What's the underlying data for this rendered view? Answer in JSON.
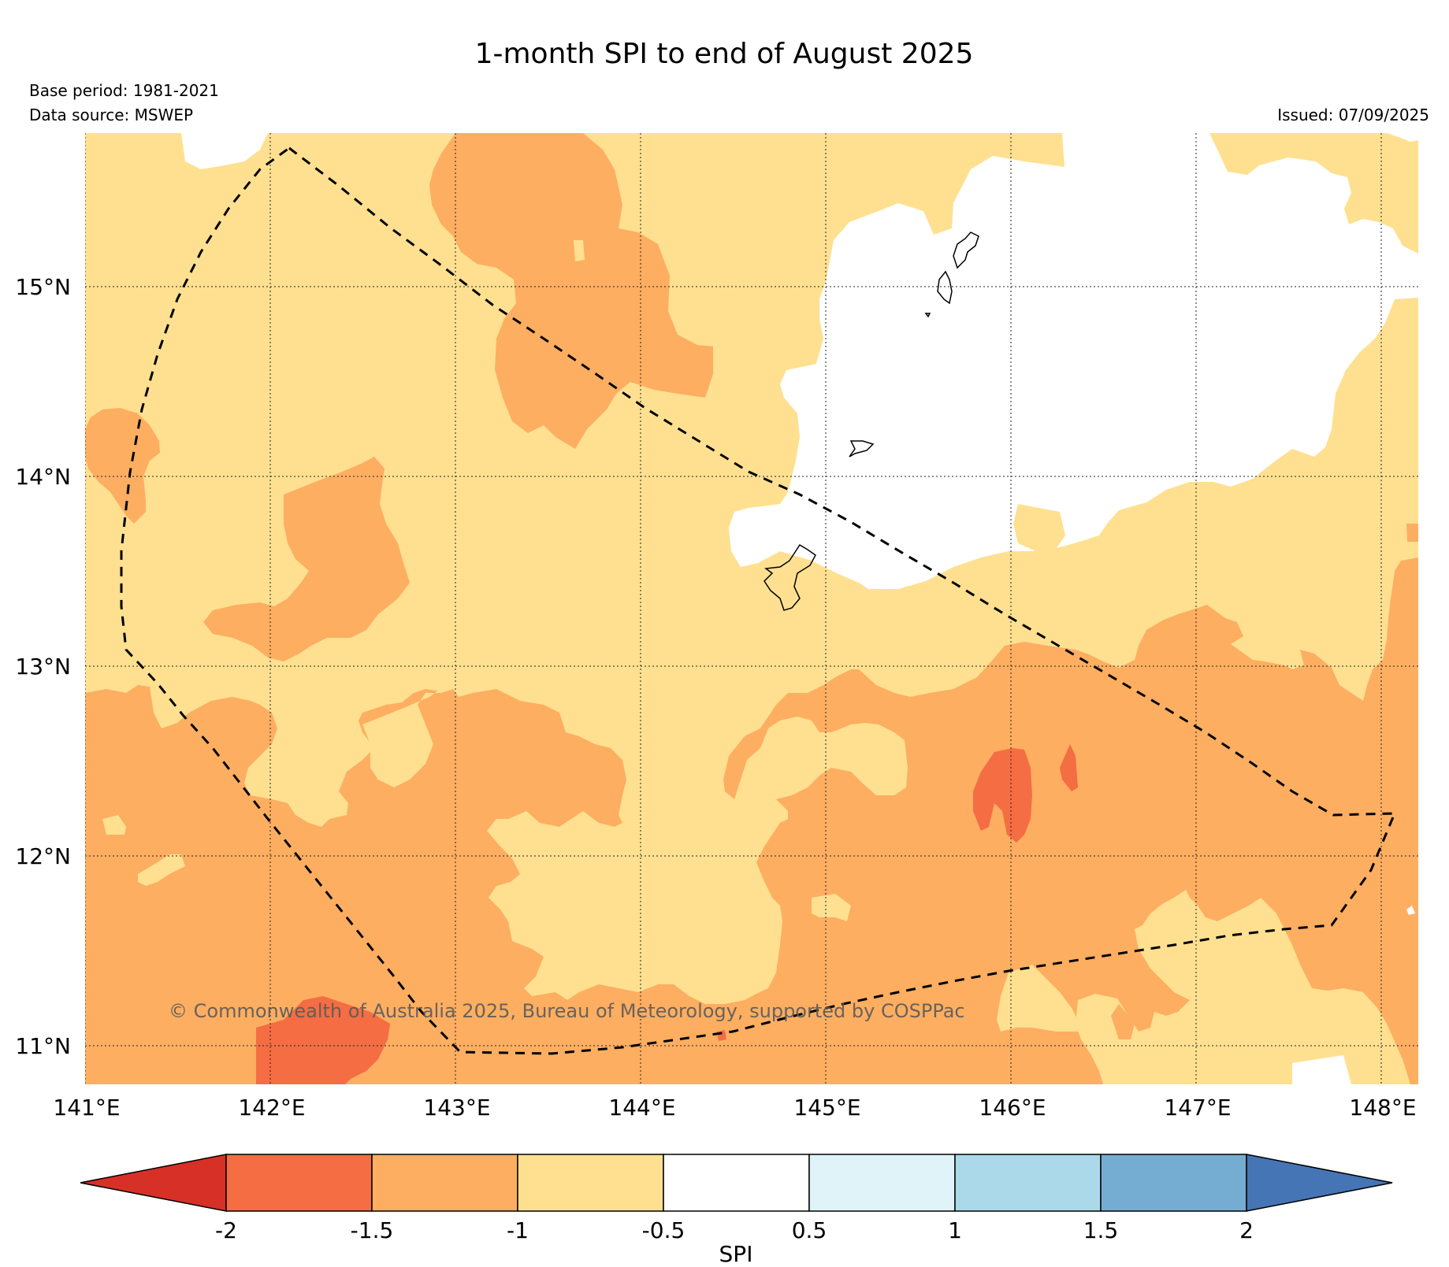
{
  "header": {
    "title": "1-month SPI to end of August 2025",
    "base_period": "Base period: 1981-2021",
    "data_source": "Data source: MSWEP",
    "issued": "Issued: 07/09/2025"
  },
  "map": {
    "lon_labels": [
      "141°E",
      "142°E",
      "143°E",
      "144°E",
      "145°E",
      "146°E",
      "147°E",
      "148°E"
    ],
    "lat_labels": [
      "15°N",
      "14°N",
      "13°N",
      "12°N",
      "11°N"
    ],
    "copyright": "© Commonwealth of Australia 2025, Bureau of Meteorology, supported by COSPPac",
    "colors": {
      "lt_m2": "#d73027",
      "m2_m15": "#f46d43",
      "m15_m1": "#fdae61",
      "m1_m05": "#fee090",
      "m05_05": "#ffffff",
      "p05_1": "#e0f3f8",
      "p1_15": "#abd9e9",
      "p15_2": "#74add1",
      "gt_2": "#4575b4"
    }
  },
  "colorbar": {
    "label": "SPI",
    "ticks": [
      "-2",
      "-1.5",
      "-1",
      "-0.5",
      "0.5",
      "1",
      "1.5",
      "2"
    ],
    "colors": [
      "#d73027",
      "#f46d43",
      "#fdae61",
      "#fee090",
      "#ffffff",
      "#e0f3f8",
      "#abd9e9",
      "#74add1",
      "#4575b4"
    ]
  }
}
